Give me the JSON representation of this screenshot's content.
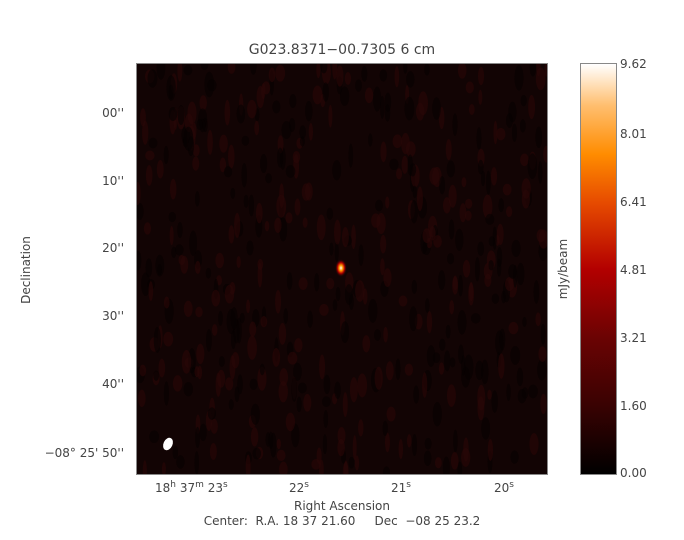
{
  "title": "G023.8371−00.7305 6 cm",
  "chart_data": {
    "type": "heatmap",
    "title": "G023.8371−00.7305 6 cm",
    "xlabel": "Right Ascension",
    "ylabel": "Declination",
    "x_ticks": [
      {
        "h": "18",
        "m": "37",
        "s": "23"
      },
      {
        "s": "22"
      },
      {
        "s": "21"
      },
      {
        "s": "20"
      }
    ],
    "y_ticks": [
      "00''",
      "10''",
      "20''",
      "30''",
      "40''",
      "−08° 25' 50''"
    ],
    "colorbar": {
      "label": "mJy/beam",
      "ticks": [
        "9.62",
        "8.01",
        "6.41",
        "4.81",
        "3.21",
        "1.60",
        "0.00"
      ],
      "range": [
        0.0,
        9.62
      ],
      "colormap": "heat (black-red-orange-white)"
    },
    "sources": [
      {
        "ra": "18 37 21.6",
        "dec": "-08 25 23",
        "peak": 9.62
      }
    ],
    "beam": {
      "shape": "ellipse",
      "color": "#ffffff"
    },
    "center": "Center:  R.A. 18 37 21.60     Dec  −08 25 23.2"
  }
}
